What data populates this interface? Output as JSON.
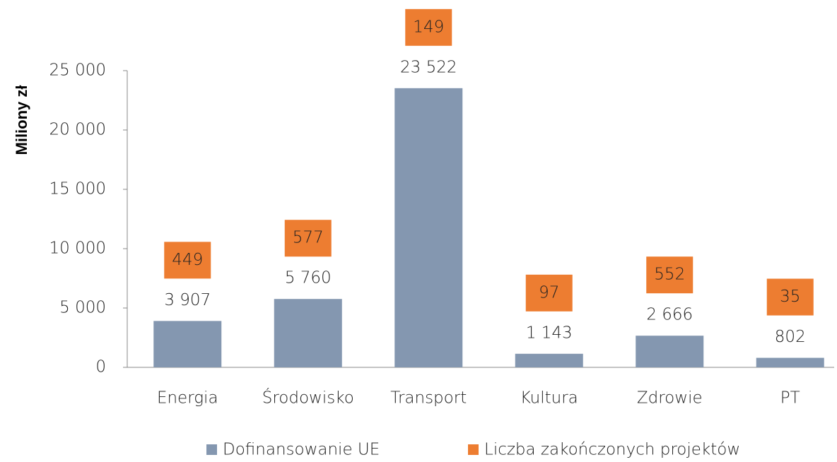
{
  "chart_data": {
    "type": "bar",
    "y_label": "Miliony zł",
    "categories": [
      "Energia",
      "Środowisko",
      "Transport",
      "Kultura",
      "Zdrowie",
      "PT"
    ],
    "series": [
      {
        "name": "Dofinansowanie UE",
        "color": "#8497b0",
        "values": [
          3907,
          5760,
          23522,
          1143,
          2666,
          802
        ],
        "value_labels": [
          "3 907",
          "5 760",
          "23 522",
          "1 143",
          "2 666",
          "802"
        ]
      },
      {
        "name": "Liczba zakończonych projektów",
        "color": "#ed7d31",
        "values": [
          449,
          577,
          149,
          97,
          552,
          35
        ]
      }
    ],
    "ylim": [
      0,
      25000
    ],
    "yticks": [
      0,
      {
        "value": 5000,
        "label": "5 000"
      },
      {
        "value": 10000,
        "label": "10 000"
      },
      {
        "value": 15000,
        "label": "15 000"
      },
      {
        "value": 20000,
        "label": "20 000"
      },
      {
        "value": 25000,
        "label": "25 000"
      }
    ],
    "legend": "bottom"
  }
}
